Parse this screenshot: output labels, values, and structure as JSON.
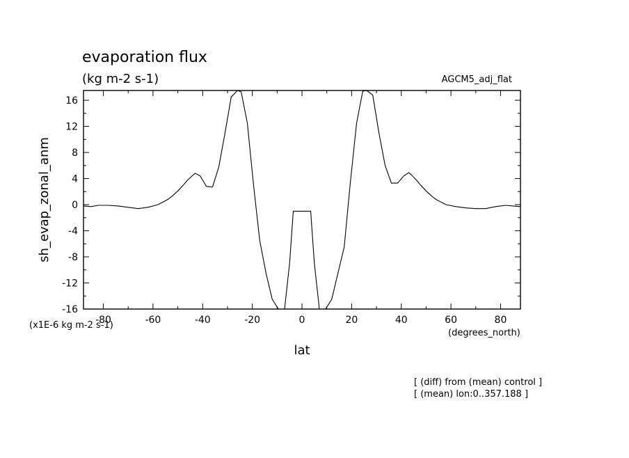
{
  "header": {
    "title": "evaporation flux",
    "units": "(kg m-2 s-1)",
    "experiment": "AGCM5_adj_flat"
  },
  "axes": {
    "ylabel": "sh_evap_zonal_anm",
    "xlabel": "lat",
    "y_scale_note": "(x1E-6 kg m-2 s-1)",
    "x_unit": "(degrees_north)"
  },
  "annotations": {
    "line1": "[ (diff) from (mean) control ]",
    "line2": "[ (mean) lon:0..357.188 ]"
  },
  "chart_data": {
    "type": "line",
    "xlim": [
      -88,
      88
    ],
    "ylim": [
      -16,
      17.5
    ],
    "x_ticks": [
      -80,
      -60,
      -40,
      -20,
      0,
      20,
      40,
      60,
      80
    ],
    "x_tick_labels": [
      "-80",
      "-60",
      "-40",
      "-20",
      "0",
      "20",
      "40",
      "60",
      "80"
    ],
    "y_ticks": [
      -16,
      -12,
      -8,
      -4,
      0,
      4,
      8,
      12,
      16
    ],
    "y_tick_labels": [
      "-16",
      "-12",
      "-8",
      "-4",
      "0",
      "4",
      "8",
      "12",
      "16"
    ],
    "grid": false,
    "series": [
      {
        "x": [
          -88,
          -85,
          -82,
          -78,
          -74,
          -70,
          -66,
          -62,
          -58,
          -56,
          -54,
          -52,
          -50,
          -48,
          -46,
          -44,
          -43,
          -41,
          -38.5,
          -36,
          -33.5,
          -31,
          -28.5,
          -26,
          -24.5,
          -22,
          -19.5,
          -17,
          -14.5,
          -12,
          -9.5,
          -7,
          -5,
          -3.5,
          -1,
          1,
          3.5,
          5,
          7,
          9.5,
          12,
          14.5,
          17,
          19.5,
          22,
          24.5,
          26,
          28.5,
          31,
          33.5,
          36,
          38.5,
          41,
          43,
          44,
          46,
          48,
          50,
          52,
          54,
          56,
          58,
          62,
          66,
          70,
          74,
          78,
          82,
          85,
          88
        ],
        "y": [
          -0.2,
          -0.3,
          -0.1,
          -0.1,
          -0.2,
          -0.4,
          -0.6,
          -0.4,
          0.0,
          0.4,
          0.8,
          1.4,
          2.1,
          2.9,
          3.8,
          4.5,
          4.8,
          4.4,
          2.8,
          2.7,
          5.8,
          11.0,
          16.5,
          17.5,
          17.3,
          12.5,
          3.0,
          -5.5,
          -10.5,
          -14.5,
          -16,
          -16,
          -9,
          -1,
          -1,
          -1,
          -1,
          -9,
          -16,
          -16,
          -14.5,
          -10.5,
          -6.5,
          3.5,
          12.5,
          17.4,
          17.5,
          16.8,
          11.0,
          6.0,
          3.3,
          3.3,
          4.4,
          4.9,
          4.6,
          3.8,
          2.9,
          2.1,
          1.4,
          0.8,
          0.4,
          0.0,
          -0.3,
          -0.5,
          -0.6,
          -0.6,
          -0.3,
          -0.1,
          -0.2,
          -0.3
        ]
      }
    ]
  }
}
